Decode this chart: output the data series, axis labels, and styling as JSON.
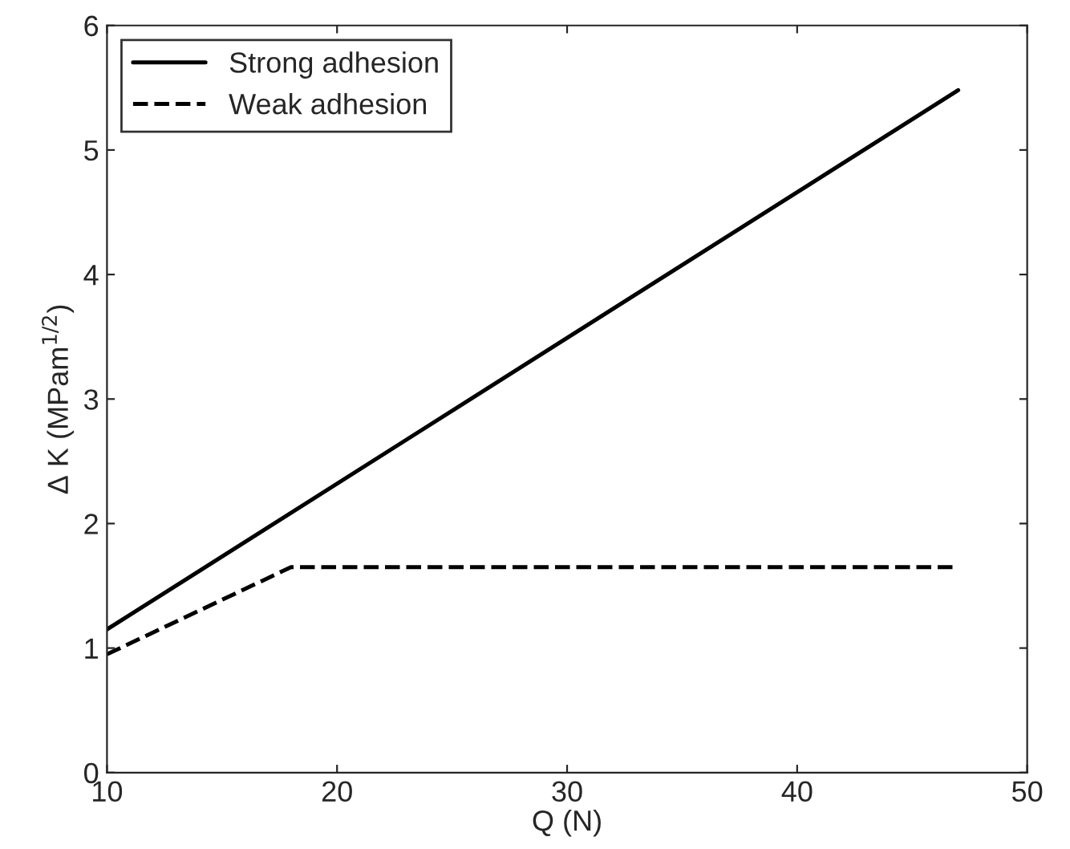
{
  "chart_data": {
    "type": "line",
    "xlabel": "Q (N)",
    "ylabel": "Δ K (MPam$^{1/2}$)",
    "series": [
      {
        "name": "Strong adhesion",
        "color": "#000000",
        "line_style": "solid",
        "x": [
          10,
          47
        ],
        "values": [
          1.15,
          5.48
        ]
      },
      {
        "name": "Weak adhesion",
        "color": "#000000",
        "line_style": "dashed",
        "x": [
          10,
          18,
          47
        ],
        "values": [
          0.95,
          1.65,
          1.65
        ]
      }
    ],
    "xlim": [
      10,
      50
    ],
    "ylim": [
      0,
      6
    ],
    "xticks": [
      10,
      20,
      30,
      40,
      50
    ],
    "yticks": [
      0,
      1,
      2,
      3,
      4,
      5,
      6
    ],
    "grid": false,
    "legend": "top left"
  }
}
